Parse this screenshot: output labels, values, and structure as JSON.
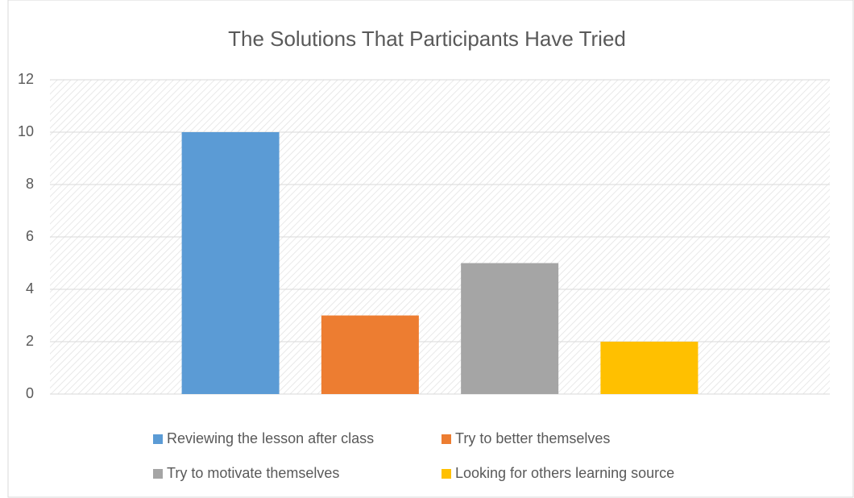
{
  "chart_data": {
    "type": "bar",
    "title": "The Solutions That Participants Have Tried",
    "categories": [
      null
    ],
    "series": [
      {
        "name": "Reviewing the lesson after class",
        "color": "#5b9bd5",
        "values": [
          10
        ]
      },
      {
        "name": "Try to better themselves",
        "color": "#ed7d31",
        "values": [
          3
        ]
      },
      {
        "name": "Try to motivate themselves",
        "color": "#a5a5a5",
        "values": [
          5
        ]
      },
      {
        "name": "Looking for others learning source",
        "color": "#ffc000",
        "values": [
          2
        ]
      }
    ],
    "ylim": [
      0,
      12
    ],
    "yticks": [
      0,
      2,
      4,
      6,
      8,
      10,
      12
    ],
    "grid": true,
    "legend": "bottom"
  }
}
